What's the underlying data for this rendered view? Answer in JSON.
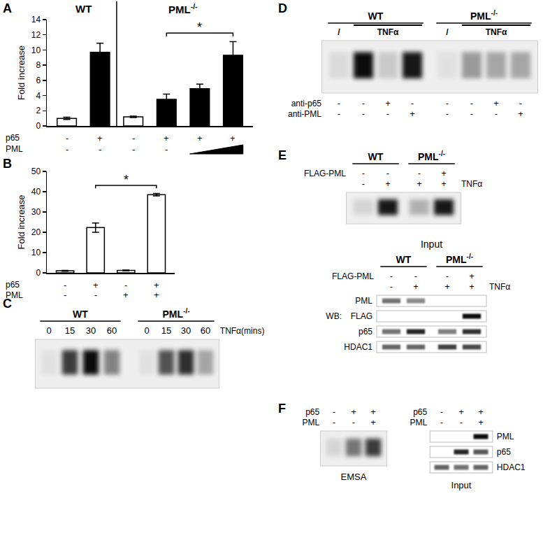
{
  "chart_data": [
    {
      "panel": "A",
      "type": "bar",
      "ylabel": "Fold increase",
      "categories": [
        null,
        null,
        null,
        null,
        null,
        null
      ],
      "values": [
        1.0,
        9.7,
        1.2,
        3.5,
        4.9,
        9.3
      ],
      "errors": [
        0.15,
        1.2,
        0.1,
        0.7,
        0.6,
        1.8
      ],
      "colors": [
        "#ffffff",
        "#000000",
        "#ffffff",
        "#000000",
        "#000000",
        "#000000"
      ],
      "ylim": [
        0,
        14
      ],
      "yticks": [
        0,
        2,
        4,
        6,
        8,
        10,
        12,
        14
      ],
      "grid": false,
      "tick_labels": "y",
      "groups": [
        {
          "label": {
            "text": "WT"
          },
          "from": 0,
          "to": 1
        },
        {
          "label": {
            "text": "PML",
            "sup": "-/-"
          },
          "from": 2,
          "to": 5
        }
      ],
      "conditions": [
        {
          "label": "p65",
          "values": [
            "-",
            "+",
            "-",
            "+",
            "+",
            "+"
          ]
        },
        {
          "label": "PML",
          "values": [
            "-",
            "-",
            "-",
            "-",
            null,
            null
          ]
        }
      ],
      "annotations": [
        {
          "text": "*",
          "from": 3,
          "to": 5
        }
      ]
    },
    {
      "panel": "B",
      "type": "bar",
      "ylabel": "Fold increase",
      "categories": [
        null,
        null,
        null,
        null
      ],
      "values": [
        1.0,
        22.3,
        1.2,
        38.5
      ],
      "errors": [
        0.2,
        2.3,
        0.2,
        0.6
      ],
      "colors": [
        "#ffffff",
        "#ffffff",
        "#ffffff",
        "#ffffff"
      ],
      "ylim": [
        0,
        50
      ],
      "yticks": [
        0,
        10,
        20,
        30,
        40,
        50
      ],
      "grid": false,
      "tick_labels": "y",
      "conditions": [
        {
          "label": "p65",
          "values": [
            "-",
            "+",
            "-",
            "+"
          ]
        },
        {
          "label": "PML",
          "values": [
            "-",
            "-",
            "+",
            "+"
          ]
        }
      ],
      "annotations": [
        {
          "text": "*",
          "from": 1,
          "to": 3
        }
      ]
    }
  ],
  "figure_panels": [
    {
      "panel": "C",
      "blocks": [
        {
          "groups": [
            {
              "label": {
                "text": "WT"
              },
              "lanes": [
                0,
                1,
                2,
                3
              ]
            },
            {
              "label": {
                "text": "PML",
                "sup": "-/-"
              },
              "lanes": [
                4,
                5,
                6,
                7
              ]
            }
          ],
          "rows_above": [
            {
              "label": "TNFα(mins)",
              "values": [
                "0",
                "15",
                "30",
                "60",
                "0",
                "15",
                "30",
                "60"
              ]
            }
          ],
          "gel": {
            "intensity": [
              0.05,
              0.75,
              0.95,
              0.45,
              0.05,
              0.65,
              0.8,
              0.3
            ]
          }
        }
      ]
    },
    {
      "panel": "D",
      "blocks": [
        {
          "groups": [
            {
              "label": {
                "text": "WT"
              },
              "lanes": [
                0,
                1,
                2,
                3
              ]
            },
            {
              "label": {
                "text": "PML",
                "sup": "-/-"
              },
              "lanes": [
                4,
                5,
                6,
                7
              ]
            }
          ],
          "spans": [
            {
              "label": "/",
              "lanes": [
                0
              ]
            },
            {
              "label": "TNFα",
              "lanes": [
                1,
                2,
                3
              ]
            },
            {
              "label": "/",
              "lanes": [
                4
              ]
            },
            {
              "label": "TNFα",
              "lanes": [
                5,
                6,
                7
              ]
            }
          ],
          "gel": {
            "intensity": [
              0.08,
              0.95,
              0.15,
              0.9,
              0.05,
              0.35,
              0.3,
              0.3
            ]
          },
          "rows_below": [
            {
              "label": "anti-p65",
              "values": [
                "-",
                "-",
                "+",
                "-",
                "-",
                "-",
                "+",
                "-"
              ]
            },
            {
              "label": "anti-PML",
              "values": [
                "-",
                "-",
                "-",
                "+",
                "-",
                "-",
                "-",
                "+"
              ]
            }
          ]
        }
      ]
    },
    {
      "panel": "E",
      "blocks": [
        {
          "groups": [
            {
              "label": {
                "text": "WT"
              },
              "lanes": [
                0,
                1
              ]
            },
            {
              "label": {
                "text": "PML",
                "sup": "-/-"
              },
              "lanes": [
                2,
                3
              ]
            }
          ],
          "rows_above": [
            {
              "label": "FLAG-PML",
              "values": [
                "-",
                "-",
                "-",
                "+"
              ]
            },
            {
              "label": "TNFα",
              "values": [
                "-",
                "+",
                "+",
                "+"
              ]
            }
          ],
          "gel": {
            "intensity": [
              0.1,
              0.9,
              0.25,
              0.9
            ]
          }
        },
        {
          "title": "Input",
          "groups": [
            {
              "label": {
                "text": "WT"
              },
              "lanes": [
                0,
                1
              ]
            },
            {
              "label": {
                "text": "PML",
                "sup": "-/-"
              },
              "lanes": [
                2,
                3
              ]
            }
          ],
          "rows_above": [
            {
              "label": "FLAG-PML",
              "values": [
                "-",
                "-",
                "-",
                "+"
              ]
            },
            {
              "label": "TNFα",
              "values": [
                "-",
                "+",
                "+",
                "+"
              ]
            }
          ],
          "blots_label": "WB:",
          "blots": [
            {
              "label": "PML",
              "intensity": [
                0.55,
                0.45,
                0,
                0
              ]
            },
            {
              "label": "FLAG",
              "intensity": [
                0,
                0,
                0,
                0.95
              ]
            },
            {
              "label": "p65",
              "intensity": [
                0.55,
                0.85,
                0.5,
                0.8
              ]
            },
            {
              "label": "HDAC1",
              "intensity": [
                0.6,
                0.6,
                0.75,
                0.7
              ]
            }
          ]
        }
      ]
    },
    {
      "panel": "F",
      "blocks": [
        {
          "rows_above": [
            {
              "label": "p65",
              "values": [
                "-",
                "+",
                "+"
              ]
            },
            {
              "label": "PML",
              "values": [
                "-",
                "-",
                "+"
              ]
            }
          ],
          "gel": {
            "intensity": [
              0.1,
              0.5,
              0.75
            ]
          },
          "caption": "EMSA"
        },
        {
          "rows_above": [
            {
              "label": "p65",
              "values": [
                "-",
                "+",
                "+"
              ]
            },
            {
              "label": "PML",
              "values": [
                "-",
                "-",
                "+"
              ]
            }
          ],
          "blots": [
            {
              "label": "PML",
              "intensity": [
                0,
                0,
                0.95
              ]
            },
            {
              "label": "p65",
              "intensity": [
                0,
                0.85,
                0.65
              ]
            },
            {
              "label": "HDAC1",
              "intensity": [
                0.6,
                0.55,
                0.6
              ]
            }
          ],
          "caption": "Input"
        }
      ]
    }
  ]
}
